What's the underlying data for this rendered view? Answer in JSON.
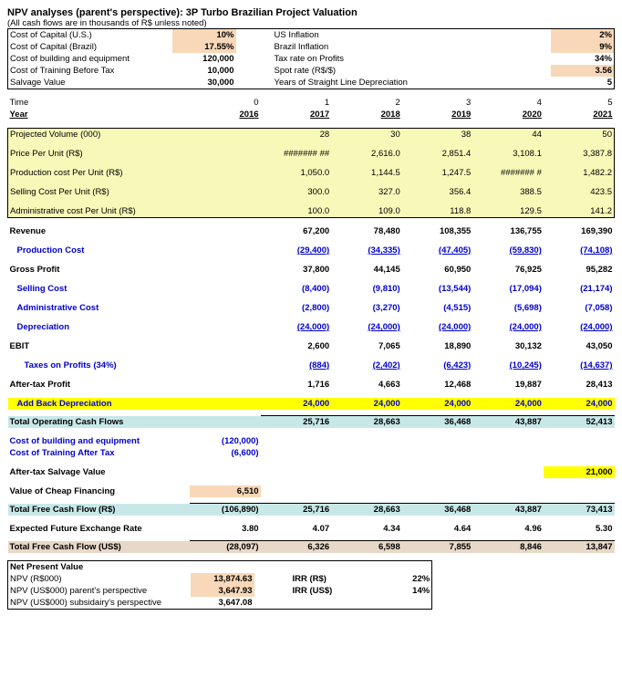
{
  "title": "NPV analyses (parent's perspective): 3P Turbo Brazilian Project Valuation",
  "subtitle": "(All cash flows are in thousands of R$ unless noted)",
  "assumptions": {
    "left": [
      {
        "label": "Cost of Capital (U.S.)",
        "value": "10%",
        "peach": true
      },
      {
        "label": "Cost of Capital (Brazil)",
        "value": "17.55%",
        "peach": true
      },
      {
        "label": "Cost of building and equipment",
        "value": "120,000",
        "peach": false
      },
      {
        "label": "Cost of Training Before Tax",
        "value": "10,000",
        "peach": false
      },
      {
        "label": "Salvage Value",
        "value": "30,000",
        "peach": false
      }
    ],
    "right": [
      {
        "label": "US Inflation",
        "value": "2%",
        "peach": true
      },
      {
        "label": "Brazil Inflation",
        "value": "9%",
        "peach": true
      },
      {
        "label": "Tax rate on Profits",
        "value": "34%",
        "peach": false
      },
      {
        "label": "Spot rate (R$/$)",
        "value": "3.56",
        "peach": true
      },
      {
        "label": "Years of Straight Line Depreciation",
        "value": "5",
        "peach": false
      }
    ]
  },
  "header": {
    "time_label": "Time",
    "year_label": "Year",
    "cols": [
      "0",
      "1",
      "2",
      "3",
      "4",
      "5"
    ],
    "years": [
      "2016",
      "2017",
      "2018",
      "2019",
      "2020",
      "2021"
    ]
  },
  "yellow_rows": [
    {
      "label": "Projected Volume (000)",
      "v": [
        "",
        "28",
        "30",
        "38",
        "44",
        "50"
      ]
    },
    {
      "label": "Price Per Unit (R$)",
      "v": [
        "",
        "#######  ##",
        "2,616.0",
        "2,851.4",
        "3,108.1",
        "3,387.8"
      ]
    },
    {
      "label": "Production cost Per Unit (R$)",
      "v": [
        "",
        "1,050.0",
        "1,144.5",
        "1,247.5",
        "#######  #",
        "1,482.2"
      ]
    },
    {
      "label": "Selling Cost Per Unit (R$)",
      "v": [
        "",
        "300.0",
        "327.0",
        "356.4",
        "388.5",
        "423.5"
      ]
    },
    {
      "label": "Administrative cost Per Unit (R$)",
      "v": [
        "",
        "100.0",
        "109.0",
        "118.8",
        "129.5",
        "141.2"
      ]
    }
  ],
  "rows": [
    {
      "label": "Revenue",
      "class": "bold",
      "v": [
        "",
        "67,200",
        "78,480",
        "108,355",
        "136,755",
        "169,390"
      ]
    },
    {
      "label": "Production Cost",
      "class": "blue bold indent",
      "v": [
        "",
        "(29,400)",
        "(34,335)",
        "(47,405)",
        "(59,830)",
        "(74,108)"
      ],
      "underline": true
    },
    {
      "label": "Gross Profit",
      "class": "bold",
      "v": [
        "",
        "37,800",
        "44,145",
        "60,950",
        "76,925",
        "95,282"
      ]
    },
    {
      "label": "Selling Cost",
      "class": "blue bold indent",
      "v": [
        "",
        "(8,400)",
        "(9,810)",
        "(13,544)",
        "(17,094)",
        "(21,174)"
      ]
    },
    {
      "label": "Administrative Cost",
      "class": "blue bold indent",
      "v": [
        "",
        "(2,800)",
        "(3,270)",
        "(4,515)",
        "(5,698)",
        "(7,058)"
      ]
    },
    {
      "label": "Depreciation",
      "class": "blue bold indent",
      "v": [
        "",
        "(24,000)",
        "(24,000)",
        "(24,000)",
        "(24,000)",
        "(24,000)"
      ],
      "underline": true
    },
    {
      "label": "EBIT",
      "class": "bold",
      "v": [
        "",
        "2,600",
        "7,065",
        "18,890",
        "30,132",
        "43,050"
      ]
    },
    {
      "label": "Taxes on Profits (34%)",
      "class": "blue bold indent2",
      "v": [
        "",
        "(884)",
        "(2,402)",
        "(6,423)",
        "(10,245)",
        "(14,637)"
      ],
      "underline": true
    },
    {
      "label": "After-tax Profit",
      "class": "bold",
      "v": [
        "",
        "1,716",
        "4,663",
        "12,468",
        "19,887",
        "28,413"
      ]
    }
  ],
  "add_back": {
    "label": "Add Back Depreciation",
    "v": [
      "",
      "24,000",
      "24,000",
      "24,000",
      "24,000",
      "24,000"
    ]
  },
  "tocf": {
    "label": "Total Operating Cash Flows",
    "v": [
      "",
      "25,716",
      "28,663",
      "36,468",
      "43,887",
      "52,413"
    ]
  },
  "building": {
    "label": "Cost of building and equipment",
    "value": "(120,000)"
  },
  "training": {
    "label": "Cost of Training After Tax",
    "value": "(6,600)"
  },
  "salvage": {
    "label": "After-tax Salvage Value",
    "v": [
      "",
      "",
      "",
      "",
      "",
      "21,000"
    ]
  },
  "cheap": {
    "label": "Value of Cheap Financing",
    "value": "6,510"
  },
  "tfcf_rs": {
    "label": "Total Free Cash Flow (R$)",
    "v": [
      "(106,890)",
      "25,716",
      "28,663",
      "36,468",
      "43,887",
      "73,413"
    ]
  },
  "exrate": {
    "label": "Expected Future Exchange Rate",
    "v": [
      "3.80",
      "4.07",
      "4.34",
      "4.64",
      "4.96",
      "5.30"
    ]
  },
  "tfcf_us": {
    "label": "Total Free Cash Flow (US$)",
    "v": [
      "(28,097)",
      "6,326",
      "6,598",
      "7,855",
      "8,846",
      "13,847"
    ]
  },
  "npv": {
    "title": "Net Present Value",
    "rows": [
      {
        "label": "NPV (R$000)",
        "value": "13,874.63",
        "peach": true
      },
      {
        "label": "NPV (US$000) parent's perspective",
        "value": "3,647.93",
        "peach": true
      },
      {
        "label": "NPV (US$000) subsidairy's perspective",
        "value": "3,647.08",
        "peach": false
      }
    ],
    "irr": [
      {
        "label": "IRR (R$)",
        "value": "22%"
      },
      {
        "label": "IRR (US$)",
        "value": "14%"
      }
    ]
  }
}
